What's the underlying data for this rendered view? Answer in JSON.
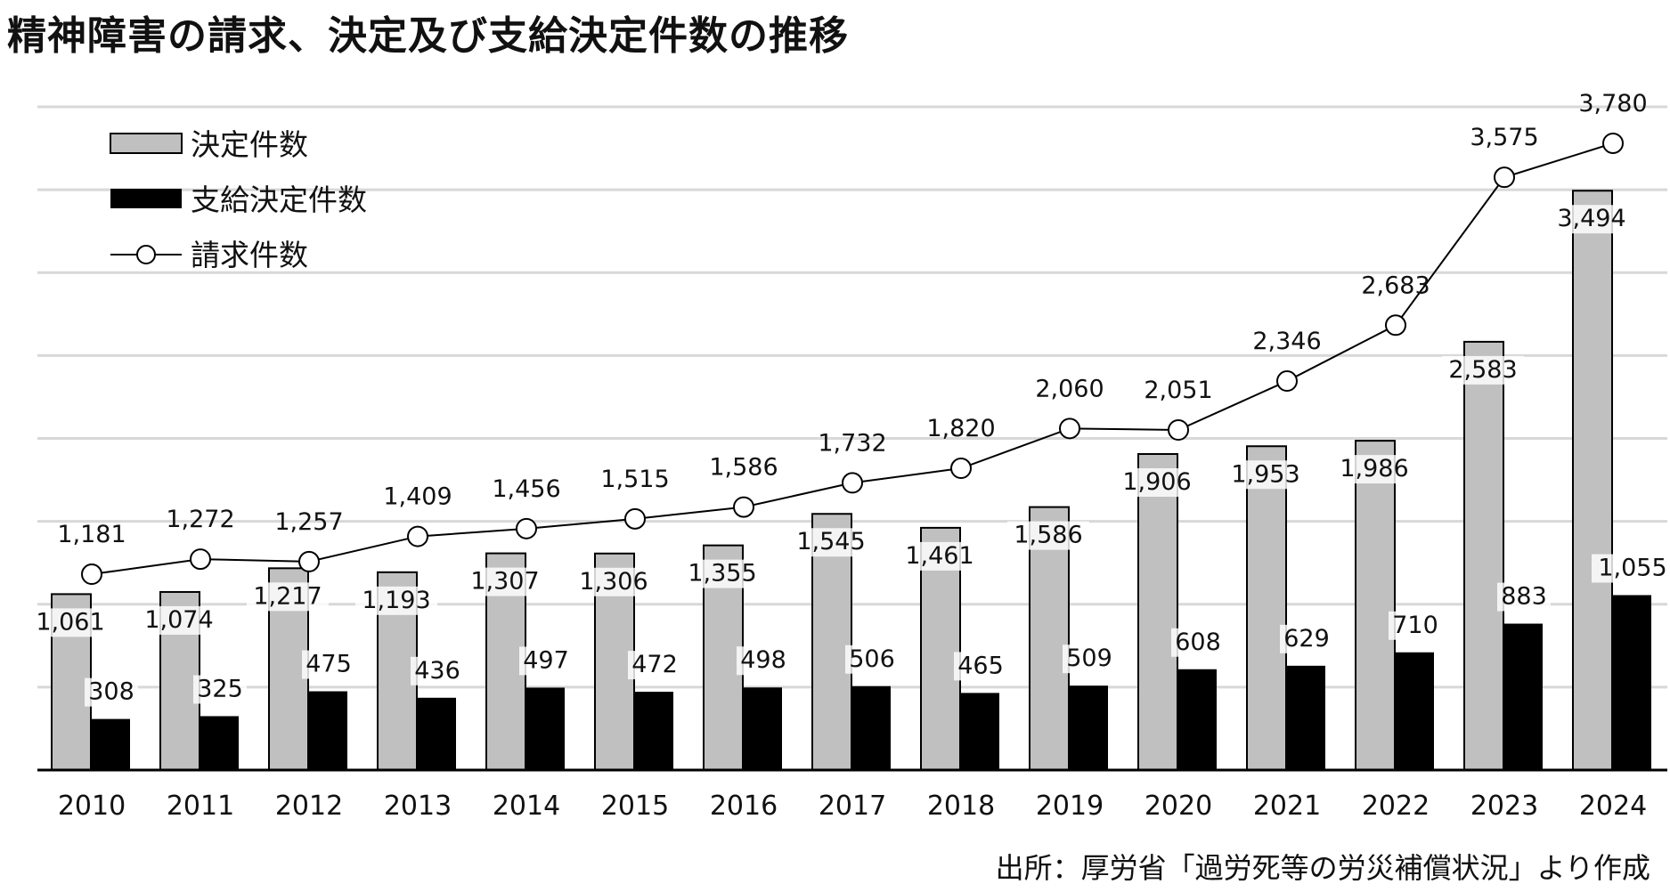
{
  "title": "精神障害の請求、決定及び支給決定件数の推移",
  "source": "出所：厚労省「過労死等の労災補償状況」より作成",
  "chart_data": {
    "type": "bar",
    "categories": [
      "2010",
      "2011",
      "2012",
      "2013",
      "2014",
      "2015",
      "2016",
      "2017",
      "2018",
      "2019",
      "2020",
      "2021",
      "2022",
      "2023",
      "2024"
    ],
    "series": [
      {
        "name": "決定件数",
        "kind": "bar",
        "color": "#c0c0c0",
        "values": [
          1061,
          1074,
          1217,
          1193,
          1307,
          1306,
          1355,
          1545,
          1461,
          1586,
          1906,
          1953,
          1986,
          2583,
          3494
        ],
        "labels": [
          "1,061",
          "1,074",
          "1,217",
          "1,193",
          "1,307",
          "1,306",
          "1,355",
          "1,545",
          "1,461",
          "1,586",
          "1,906",
          "1,953",
          "1,986",
          "2,583",
          "3,494"
        ]
      },
      {
        "name": "支給決定件数",
        "kind": "bar",
        "color": "#000000",
        "values": [
          308,
          325,
          475,
          436,
          497,
          472,
          498,
          506,
          465,
          509,
          608,
          629,
          710,
          883,
          1055
        ],
        "labels": [
          "308",
          "325",
          "475",
          "436",
          "497",
          "472",
          "498",
          "506",
          "465",
          "509",
          "608",
          "629",
          "710",
          "883",
          "1,055"
        ]
      },
      {
        "name": "請求件数",
        "kind": "line",
        "color": "#000000",
        "values": [
          1181,
          1272,
          1257,
          1409,
          1456,
          1515,
          1586,
          1732,
          1820,
          2060,
          2051,
          2346,
          2683,
          3575,
          3780
        ],
        "labels": [
          "1,181",
          "1,272",
          "1,257",
          "1,409",
          "1,456",
          "1,515",
          "1,586",
          "1,732",
          "1,820",
          "2,060",
          "2,051",
          "2,346",
          "2,683",
          "3,575",
          "3,780"
        ]
      }
    ],
    "ylim": [
      0,
      4000
    ],
    "grid": true,
    "legend_position": "top-left",
    "gridline_color": "#d8d8d8"
  }
}
